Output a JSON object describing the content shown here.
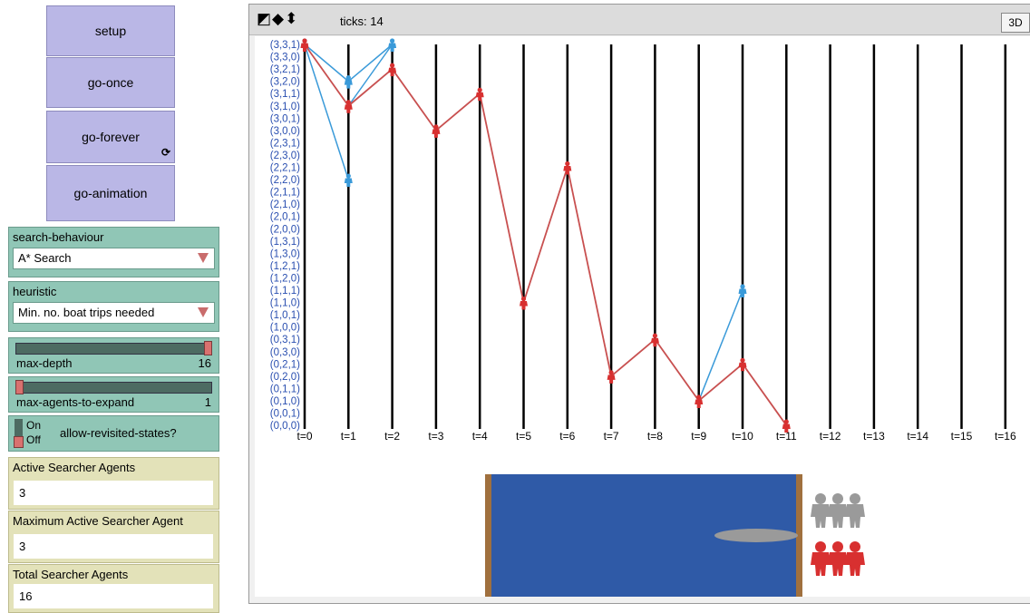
{
  "buttons": {
    "setup": "setup",
    "go_once": "go-once",
    "go_forever": "go-forever",
    "go_forever_icon": "⟳",
    "go_animation": "go-animation"
  },
  "search_behaviour": {
    "label": "search-behaviour",
    "value": "A* Search"
  },
  "heuristic": {
    "label": "heuristic",
    "value": "Min. no. boat trips needed"
  },
  "max_depth": {
    "label": "max-depth",
    "value": "16",
    "fraction": 1.0
  },
  "max_agents_to_expand": {
    "label": "max-agents-to-expand",
    "value": "1",
    "fraction": 0.0
  },
  "allow_revisited": {
    "label": "allow-revisited-states?",
    "on": "On",
    "off": "Off",
    "state": "off"
  },
  "monitors": {
    "active": {
      "label": "Active Searcher Agents",
      "value": "3"
    },
    "max_active": {
      "label": "Maximum Active Searcher Agent",
      "value": "3"
    },
    "total": {
      "label": "Total Searcher Agents",
      "value": "16"
    }
  },
  "view": {
    "ticks_label": "ticks: 14",
    "btn3d": "3D",
    "toolbar_icons": "◩◆⬍"
  },
  "colors": {
    "red": "#d83030",
    "blue": "#3a9ad9",
    "gray": "#9a9a9a",
    "river": "#2f5aa7",
    "bank": "#a0703e"
  },
  "chart_data": {
    "type": "line",
    "y_labels": [
      "(3,3,1)",
      "(3,3,0)",
      "(3,2,1)",
      "(3,2,0)",
      "(3,1,1)",
      "(3,1,0)",
      "(3,0,1)",
      "(3,0,0)",
      "(2,3,1)",
      "(2,3,0)",
      "(2,2,1)",
      "(2,2,0)",
      "(2,1,1)",
      "(2,1,0)",
      "(2,0,1)",
      "(2,0,0)",
      "(1,3,1)",
      "(1,3,0)",
      "(1,2,1)",
      "(1,2,0)",
      "(1,1,1)",
      "(1,1,0)",
      "(1,0,1)",
      "(1,0,0)",
      "(0,3,1)",
      "(0,3,0)",
      "(0,2,1)",
      "(0,2,0)",
      "(0,1,1)",
      "(0,1,0)",
      "(0,0,1)",
      "(0,0,0)"
    ],
    "x_labels": [
      "t=0",
      "t=1",
      "t=2",
      "t=3",
      "t=4",
      "t=5",
      "t=6",
      "t=7",
      "t=8",
      "t=9",
      "t=10",
      "t=11",
      "t=12",
      "t=13",
      "t=14",
      "t=15",
      "t=16"
    ],
    "red_path": [
      [
        0,
        "(3,3,1)"
      ],
      [
        1,
        "(3,1,0)"
      ],
      [
        2,
        "(3,2,1)"
      ],
      [
        3,
        "(3,0,0)"
      ],
      [
        4,
        "(3,1,1)"
      ],
      [
        5,
        "(1,1,0)"
      ],
      [
        6,
        "(2,2,1)"
      ],
      [
        7,
        "(0,2,0)"
      ],
      [
        8,
        "(0,3,1)"
      ],
      [
        9,
        "(0,1,0)"
      ],
      [
        10,
        "(0,2,1)"
      ],
      [
        11,
        "(0,0,0)"
      ]
    ],
    "blue_edges": [
      [
        [
          0,
          "(3,3,1)"
        ],
        [
          1,
          "(3,2,0)"
        ]
      ],
      [
        [
          0,
          "(3,3,1)"
        ],
        [
          1,
          "(2,2,0)"
        ]
      ],
      [
        [
          1,
          "(3,1,0)"
        ],
        [
          2,
          "(3,3,1)"
        ]
      ],
      [
        [
          1,
          "(3,2,0)"
        ],
        [
          2,
          "(3,3,1)"
        ]
      ],
      [
        [
          9,
          "(0,1,0)"
        ],
        [
          10,
          "(1,1,1)"
        ]
      ]
    ],
    "blue_nodes": [
      [
        0,
        "(3,3,1)"
      ],
      [
        1,
        "(3,2,0)"
      ],
      [
        1,
        "(2,2,0)"
      ],
      [
        2,
        "(3,3,1)"
      ],
      [
        10,
        "(1,1,1)"
      ]
    ]
  }
}
